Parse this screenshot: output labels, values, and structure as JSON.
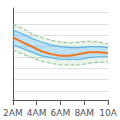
{
  "chart_data": {
    "type": "line",
    "x": [
      0,
      1,
      2,
      3,
      4,
      5,
      6,
      7,
      8,
      9,
      10
    ],
    "xlim": [
      0,
      10
    ],
    "xticks": [
      {
        "value": 0,
        "label": "2AM"
      },
      {
        "value": 2.5,
        "label": "4AM"
      },
      {
        "value": 5,
        "label": "6AM"
      },
      {
        "value": 7.5,
        "label": "8AM"
      },
      {
        "value": 10,
        "label": "10A"
      }
    ],
    "ylim": [
      0,
      1
    ],
    "yticks": [
      0.1,
      0.22142857142857142,
      0.34285714285714286,
      0.4642857142857143,
      0.5857142857142857,
      0.7071428571428571,
      0.8285714285714285,
      0.95
    ],
    "grid": true,
    "tick_labels": "x",
    "series": [
      {
        "color": "#88bb88",
        "line_style": "dashed",
        "values": [
          0.82,
          0.78,
          0.72,
          0.68,
          0.65,
          0.63,
          0.62,
          0.63,
          0.64,
          0.63,
          0.61
        ]
      },
      {
        "color": "#5ab4e8",
        "line_style": "solid",
        "values": [
          0.76,
          0.72,
          0.67,
          0.63,
          0.6,
          0.58,
          0.57,
          0.57,
          0.58,
          0.58,
          0.57
        ]
      },
      {
        "color": "#f07820",
        "line_style": "solid",
        "values": [
          0.68,
          0.63,
          0.58,
          0.53,
          0.5,
          0.48,
          0.48,
          0.5,
          0.52,
          0.52,
          0.51
        ]
      },
      {
        "color": "#5ab4e8",
        "line_style": "solid",
        "values": [
          0.6,
          0.56,
          0.52,
          0.48,
          0.46,
          0.44,
          0.44,
          0.44,
          0.46,
          0.47,
          0.47
        ]
      },
      {
        "color": "#88bb88",
        "line_style": "dashed",
        "values": [
          0.54,
          0.5,
          0.46,
          0.42,
          0.4,
          0.38,
          0.38,
          0.38,
          0.4,
          0.41,
          0.41
        ]
      }
    ]
  }
}
